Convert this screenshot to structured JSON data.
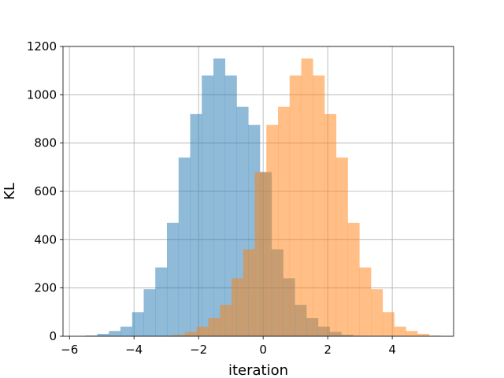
{
  "chart_data": {
    "type": "bar",
    "subtype": "overlapping-histogram",
    "title": "",
    "xlabel": "iteration",
    "ylabel": "KL",
    "xlim": [
      -6.2,
      5.9
    ],
    "ylim": [
      0,
      1200
    ],
    "xticks": [
      -6,
      -4,
      -2,
      0,
      2,
      4
    ],
    "xtick_labels": [
      "−6",
      "−4",
      "−2",
      "0",
      "2",
      "4"
    ],
    "yticks": [
      0,
      200,
      400,
      600,
      800,
      1000,
      1200
    ],
    "ytick_labels": [
      "0",
      "200",
      "400",
      "600",
      "800",
      "1000",
      "1200"
    ],
    "grid": true,
    "legend": "none",
    "series": [
      {
        "color": "#1f77b4",
        "alpha": 0.5,
        "bin_edges": [
          -5.5,
          -5.14,
          -4.78,
          -4.42,
          -4.06,
          -3.7,
          -3.34,
          -2.98,
          -2.62,
          -2.26,
          -1.9,
          -1.54,
          -1.18,
          -0.82,
          -0.46,
          -0.1,
          0.26,
          0.62,
          0.98,
          1.34,
          1.7,
          2.06,
          2.42,
          2.78,
          3.14
        ],
        "values": [
          3,
          10,
          22,
          40,
          100,
          195,
          285,
          470,
          740,
          920,
          1080,
          1150,
          1080,
          950,
          875,
          680,
          360,
          240,
          130,
          75,
          40,
          18,
          6,
          2
        ]
      },
      {
        "color": "#ff7f0e",
        "alpha": 0.5,
        "bin_edges": [
          -3.14,
          -2.78,
          -2.42,
          -2.06,
          -1.7,
          -1.34,
          -0.98,
          -0.62,
          -0.26,
          0.1,
          0.46,
          0.82,
          1.18,
          1.54,
          1.9,
          2.26,
          2.62,
          2.98,
          3.34,
          3.7,
          4.06,
          4.42,
          4.78,
          5.14,
          5.5
        ],
        "values": [
          2,
          6,
          18,
          40,
          75,
          130,
          240,
          360,
          680,
          875,
          950,
          1080,
          1150,
          1080,
          920,
          740,
          470,
          285,
          195,
          100,
          40,
          22,
          10,
          3
        ]
      }
    ]
  }
}
